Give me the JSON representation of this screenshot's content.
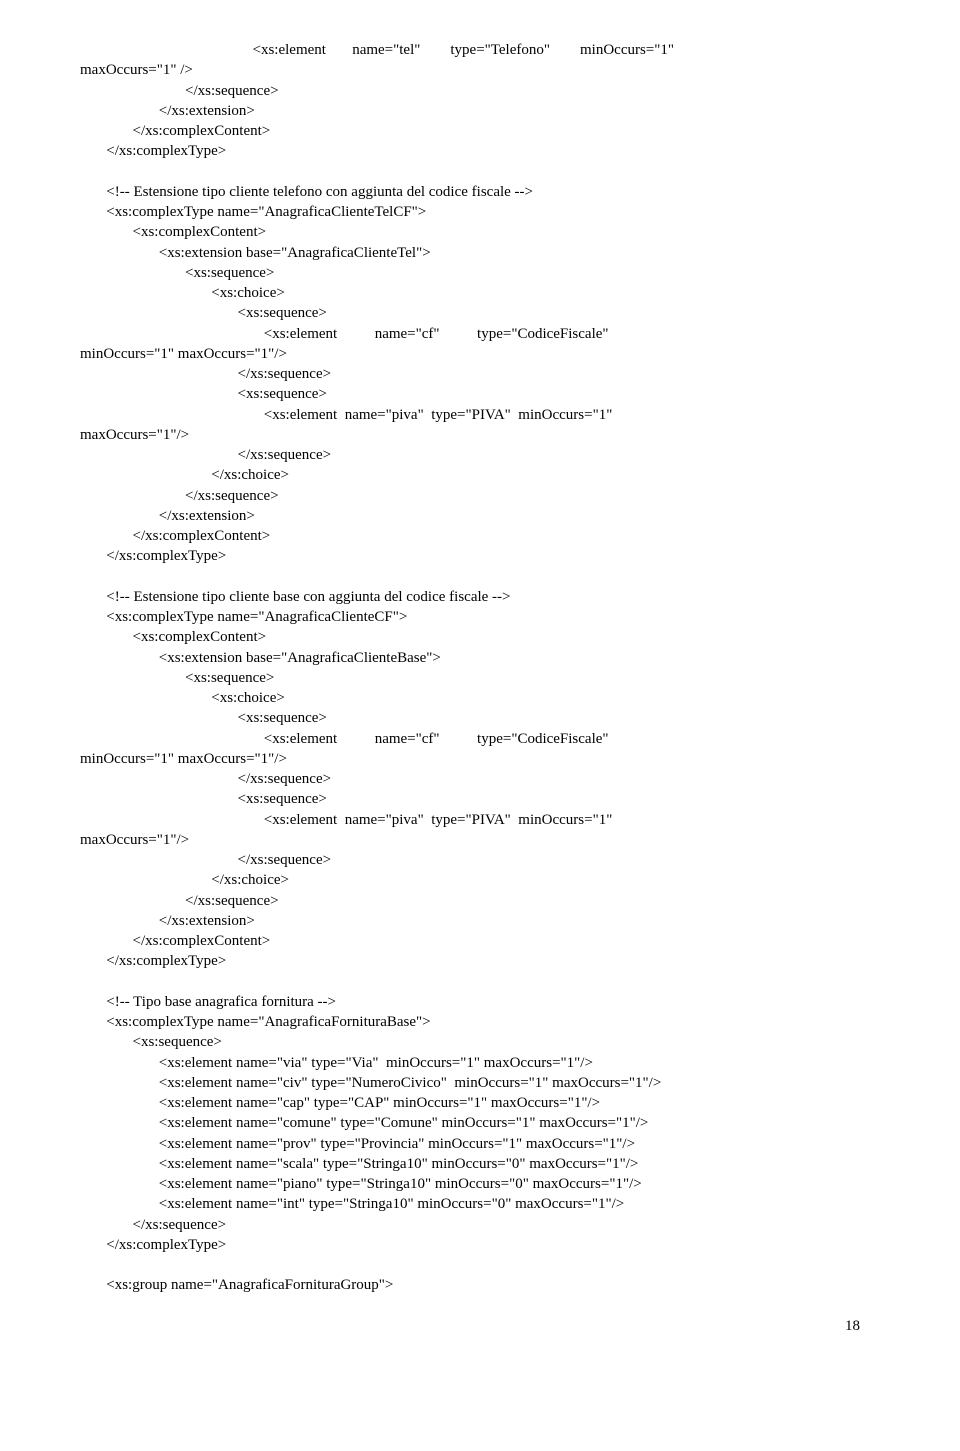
{
  "lines": [
    "                                              <xs:element       name=\"tel\"        type=\"Telefono\"        minOccurs=\"1\"",
    "maxOccurs=\"1\" />",
    "                            </xs:sequence>",
    "                     </xs:extension>",
    "              </xs:complexContent>",
    "       </xs:complexType>",
    "",
    "       <!-- Estensione tipo cliente telefono con aggiunta del codice fiscale -->",
    "       <xs:complexType name=\"AnagraficaClienteTelCF\">",
    "              <xs:complexContent>",
    "                     <xs:extension base=\"AnagraficaClienteTel\">",
    "                            <xs:sequence>",
    "                                   <xs:choice>",
    "                                          <xs:sequence>",
    "                                                 <xs:element          name=\"cf\"          type=\"CodiceFiscale\"",
    "minOccurs=\"1\" maxOccurs=\"1\"/>",
    "                                          </xs:sequence>",
    "                                          <xs:sequence>",
    "                                                 <xs:element  name=\"piva\"  type=\"PIVA\"  minOccurs=\"1\"",
    "maxOccurs=\"1\"/>",
    "                                          </xs:sequence>",
    "                                   </xs:choice>",
    "                            </xs:sequence>",
    "                     </xs:extension>",
    "              </xs:complexContent>",
    "       </xs:complexType>",
    "",
    "       <!-- Estensione tipo cliente base con aggiunta del codice fiscale -->",
    "       <xs:complexType name=\"AnagraficaClienteCF\">",
    "              <xs:complexContent>",
    "                     <xs:extension base=\"AnagraficaClienteBase\">",
    "                            <xs:sequence>",
    "                                   <xs:choice>",
    "                                          <xs:sequence>",
    "                                                 <xs:element          name=\"cf\"          type=\"CodiceFiscale\"",
    "minOccurs=\"1\" maxOccurs=\"1\"/>",
    "                                          </xs:sequence>",
    "                                          <xs:sequence>",
    "                                                 <xs:element  name=\"piva\"  type=\"PIVA\"  minOccurs=\"1\"",
    "maxOccurs=\"1\"/>",
    "                                          </xs:sequence>",
    "                                   </xs:choice>",
    "                            </xs:sequence>",
    "                     </xs:extension>",
    "              </xs:complexContent>",
    "       </xs:complexType>",
    "",
    "       <!-- Tipo base anagrafica fornitura -->",
    "       <xs:complexType name=\"AnagraficaFornituraBase\">",
    "              <xs:sequence>",
    "                     <xs:element name=\"via\" type=\"Via\"  minOccurs=\"1\" maxOccurs=\"1\"/>",
    "                     <xs:element name=\"civ\" type=\"NumeroCivico\"  minOccurs=\"1\" maxOccurs=\"1\"/>",
    "                     <xs:element name=\"cap\" type=\"CAP\" minOccurs=\"1\" maxOccurs=\"1\"/>",
    "                     <xs:element name=\"comune\" type=\"Comune\" minOccurs=\"1\" maxOccurs=\"1\"/>",
    "                     <xs:element name=\"prov\" type=\"Provincia\" minOccurs=\"1\" maxOccurs=\"1\"/>",
    "                     <xs:element name=\"scala\" type=\"Stringa10\" minOccurs=\"0\" maxOccurs=\"1\"/>",
    "                     <xs:element name=\"piano\" type=\"Stringa10\" minOccurs=\"0\" maxOccurs=\"1\"/>",
    "                     <xs:element name=\"int\" type=\"Stringa10\" minOccurs=\"0\" maxOccurs=\"1\"/>",
    "              </xs:sequence>",
    "       </xs:complexType>",
    "",
    "       <xs:group name=\"AnagraficaFornituraGroup\">"
  ],
  "pageNumber": "18"
}
